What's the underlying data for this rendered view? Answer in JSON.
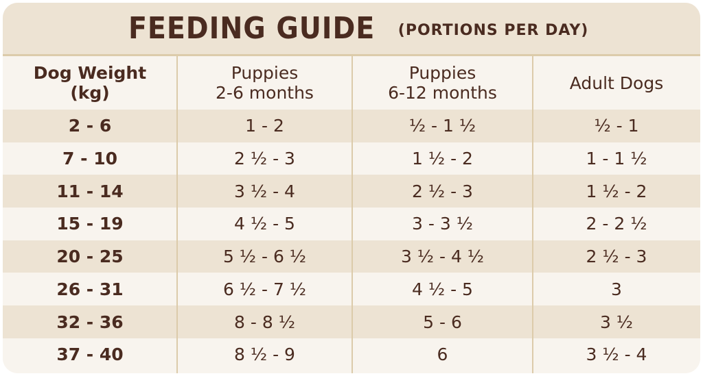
{
  "header": {
    "title": "FEEDING GUIDE",
    "subtitle": "(PORTIONS PER DAY)"
  },
  "table": {
    "columns": [
      [
        "Dog Weight",
        "(kg)"
      ],
      [
        "Puppies",
        "2-6 months"
      ],
      [
        "Puppies",
        "6-12 months"
      ],
      [
        "Adult Dogs"
      ]
    ],
    "rows": [
      [
        "2 - 6",
        "1 - 2",
        "½ - 1 ½",
        "½ - 1"
      ],
      [
        "7 - 10",
        "2 ½ - 3",
        "1 ½ - 2",
        "1 - 1 ½"
      ],
      [
        "11 - 14",
        "3 ½ - 4",
        "2 ½ - 3",
        "1 ½ - 2"
      ],
      [
        "15 - 19",
        "4 ½ - 5",
        "3 - 3 ½",
        "2 - 2 ½"
      ],
      [
        "20 - 25",
        "5 ½ - 6 ½",
        "3 ½ - 4 ½",
        "2 ½ - 3"
      ],
      [
        "26 - 31",
        "6 ½ - 7 ½",
        "4 ½ - 5",
        "3"
      ],
      [
        "32 - 36",
        "8 - 8 ½",
        "5 - 6",
        "3 ½"
      ],
      [
        "37 - 40",
        "8 ½ - 9",
        "6",
        "3 ½ - 4"
      ]
    ]
  }
}
